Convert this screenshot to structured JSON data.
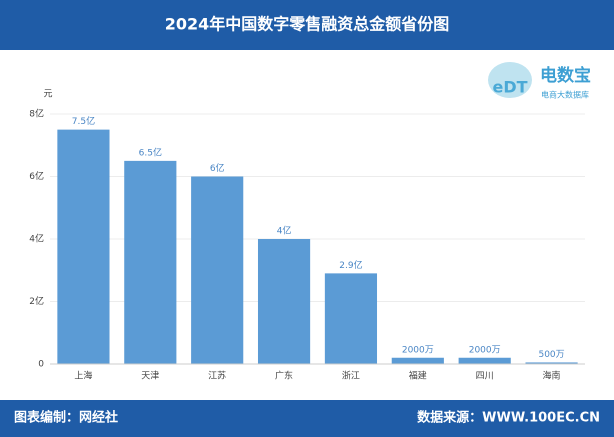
{
  "chart_data": {
    "type": "bar",
    "title": "2024年中国数字零售融资总金额省份图",
    "y_label": "元",
    "categories": [
      "上海",
      "天津",
      "江苏",
      "广东",
      "浙江",
      "福建",
      "四川",
      "海南"
    ],
    "values": [
      750000000,
      650000000,
      600000000,
      400000000,
      290000000,
      20000000,
      20000000,
      5000000
    ],
    "value_labels": [
      "7.5亿",
      "6.5亿",
      "6亿",
      "4亿",
      "2.9亿",
      "2000万",
      "2000万",
      "500万"
    ],
    "color": "#5b9bd5",
    "ylim": [
      0,
      800000000
    ],
    "yticks": [
      0,
      {
        "value": 200000000,
        "label": "2亿"
      },
      {
        "value": 400000000,
        "label": "4亿"
      },
      {
        "value": 600000000,
        "label": "6亿"
      },
      {
        "value": 800000000,
        "label": "8亿"
      }
    ],
    "grid": true
  },
  "logo": {
    "mark": "eDT",
    "name": "电数宝",
    "subtitle": "电商大数据库"
  },
  "footer": {
    "left": "图表编制：网经社",
    "right": "数据来源：WWW.100EC.CN"
  }
}
